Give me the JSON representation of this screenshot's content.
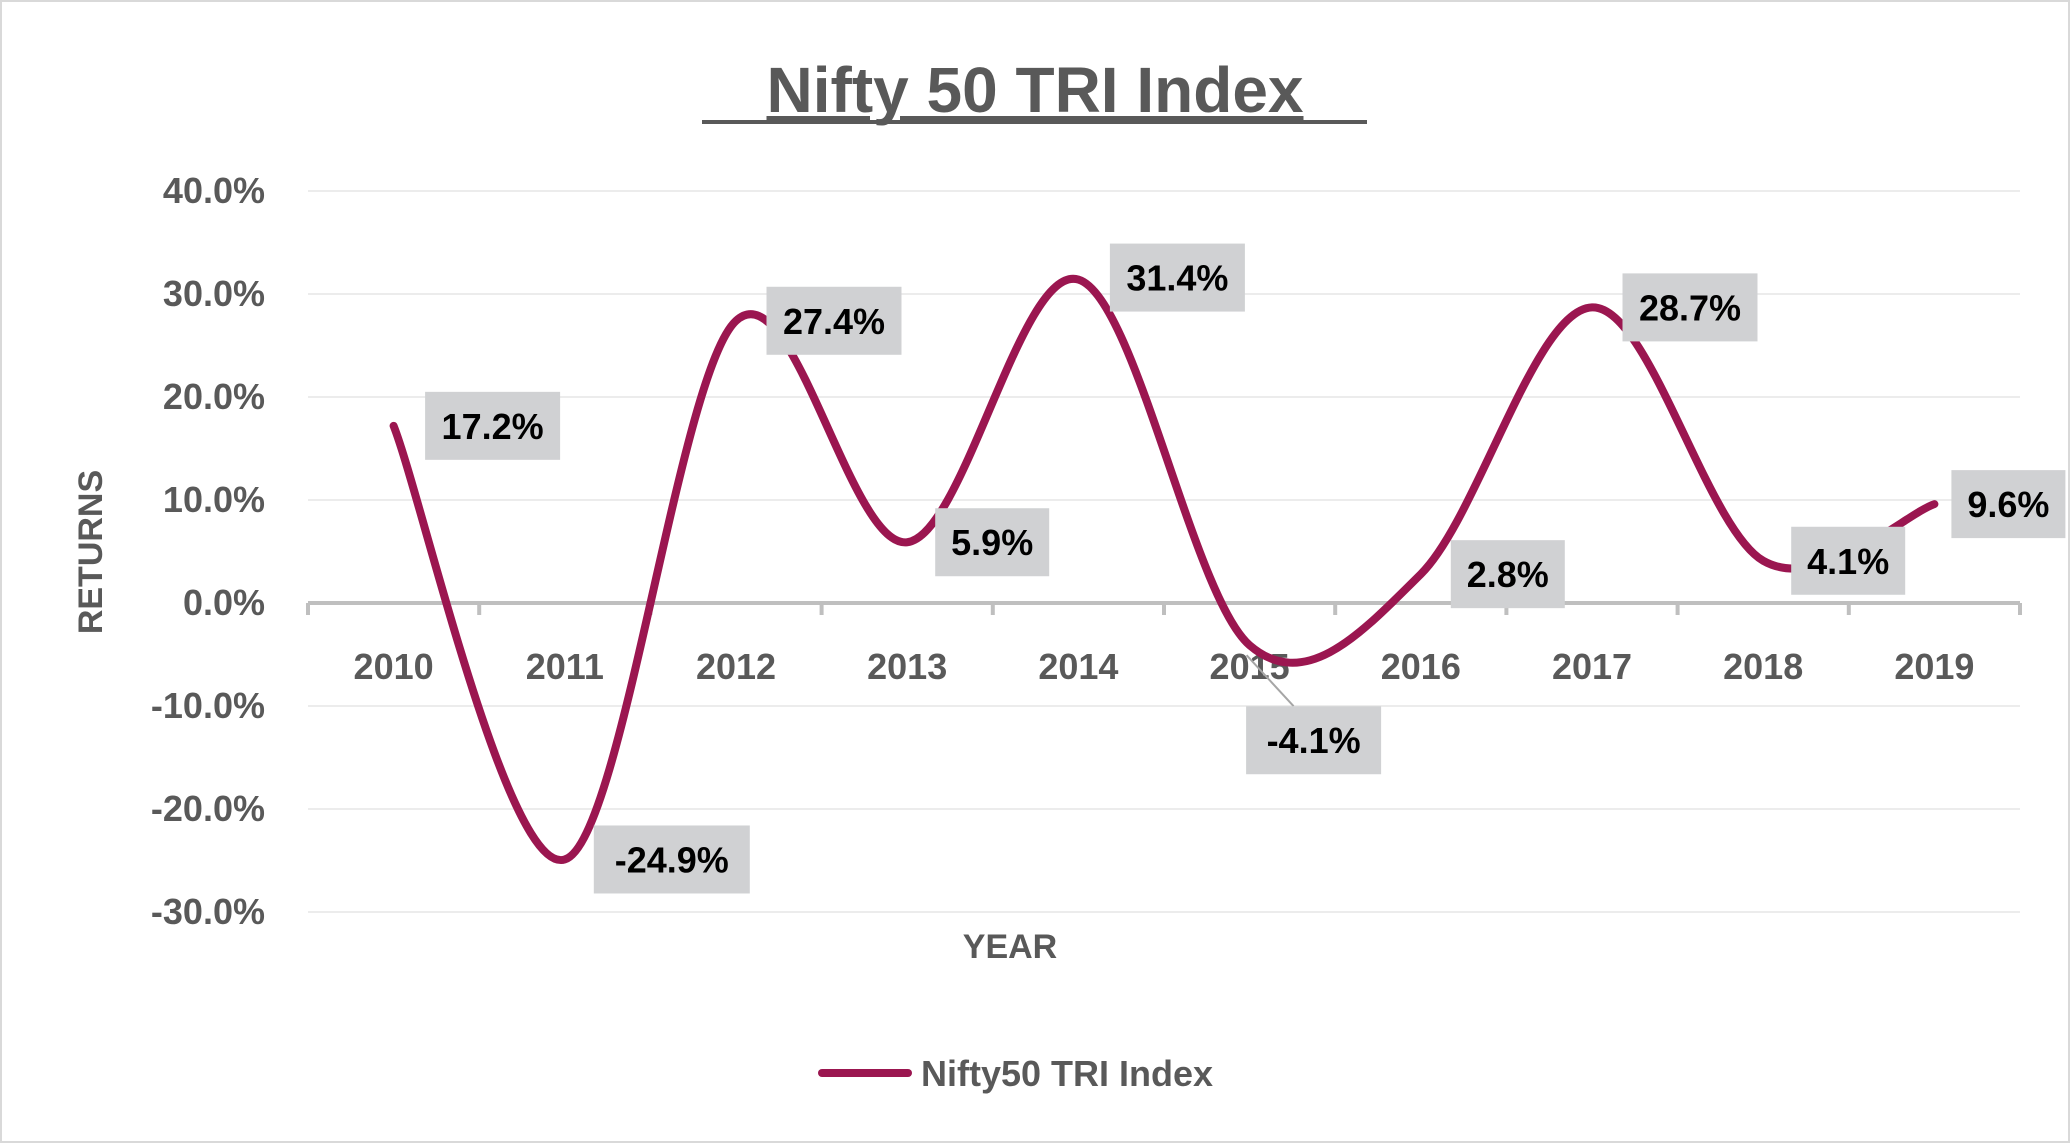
{
  "chart_data": {
    "type": "line",
    "title": "Nifty 50 TRI Index",
    "xlabel": "YEAR",
    "ylabel": "RETURNS",
    "categories": [
      "2010",
      "2011",
      "2012",
      "2013",
      "2014",
      "2015",
      "2016",
      "2017",
      "2018",
      "2019"
    ],
    "series": [
      {
        "name": "Nifty50 TRI Index",
        "values": [
          17.2,
          -24.9,
          27.4,
          5.9,
          31.4,
          -4.1,
          2.8,
          28.7,
          4.1,
          9.6
        ],
        "data_labels": [
          "17.2%",
          "-24.9%",
          "27.4%",
          "5.9%",
          "31.4%",
          "-4.1%",
          "2.8%",
          "28.7%",
          "4.1%",
          "9.6%"
        ],
        "color": "#9b1650",
        "smoothed": true
      }
    ],
    "ylim": [
      -30,
      40
    ],
    "yticks": [
      40,
      30,
      20,
      10,
      0,
      -10,
      -20,
      -30
    ],
    "ytick_labels": [
      "40.0%",
      "30.0%",
      "20.0%",
      "10.0%",
      "0.0%",
      "-10.0%",
      "-20.0%",
      "-30.0%"
    ],
    "grid": true,
    "legend": "bottom",
    "colors": {
      "text": "#595959",
      "label_bg": "#d0d1d3",
      "axis": "#bfbfbf",
      "grid": "#ececec"
    }
  }
}
